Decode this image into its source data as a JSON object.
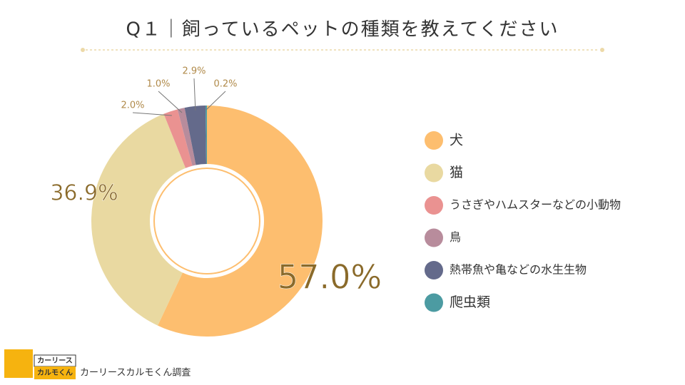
{
  "chart_data": {
    "type": "donut",
    "title": "Q１｜飼っているペットの種類を教えてください",
    "categories": [
      "犬",
      "猫",
      "うさぎやハムスターなどの小動物",
      "鳥",
      "熱帯魚や亀などの水生生物",
      "爬虫類"
    ],
    "values": [
      57.0,
      36.9,
      2.0,
      1.0,
      2.9,
      0.2
    ],
    "value_labels": [
      "57.0%",
      "36.9%",
      "2.0%",
      "1.0%",
      "2.9%",
      "0.2%"
    ],
    "colors": [
      "#fdbe6f",
      "#e9d9a1",
      "#ea9291",
      "#b88c9c",
      "#646a8b",
      "#4c9ba2"
    ],
    "legend": "right",
    "source": "カーリースカルモくん調査",
    "logo": [
      "カーリース",
      "カルモくん"
    ]
  }
}
